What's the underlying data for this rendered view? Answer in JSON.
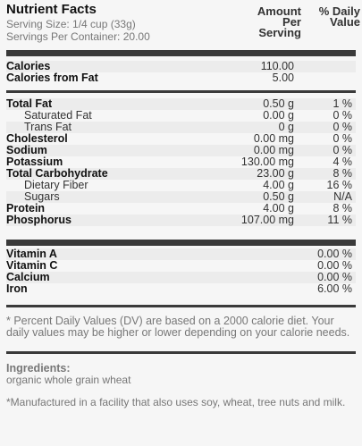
{
  "title": "Nutrient Facts",
  "serving_size": "Serving Size: 1/4 cup (33g)",
  "servings_per_container": "Servings Per Container: 20.00",
  "headers": {
    "amount_line1": "Amount",
    "amount_line2": "Per",
    "amount_line3": "Serving",
    "dv_line1": "% Daily",
    "dv_line2": "Value"
  },
  "calories": [
    {
      "name": "Calories",
      "amount": "110.00"
    },
    {
      "name": "Calories from Fat",
      "amount": "5.00"
    }
  ],
  "nutrients": [
    {
      "name": "Total Fat",
      "amount": "0.50 g",
      "dv": "1 %",
      "level": "main"
    },
    {
      "name": "Saturated Fat",
      "amount": "0.00 g",
      "dv": "0 %",
      "level": "sub"
    },
    {
      "name": "Trans Fat",
      "amount": "0 g",
      "dv": "0 %",
      "level": "sub"
    },
    {
      "name": "Cholesterol",
      "amount": "0.00 mg",
      "dv": "0 %",
      "level": "main"
    },
    {
      "name": "Sodium",
      "amount": "0.00 mg",
      "dv": "0 %",
      "level": "main"
    },
    {
      "name": "Potassium",
      "amount": "130.00 mg",
      "dv": "4 %",
      "level": "main"
    },
    {
      "name": "Total Carbohydrate",
      "amount": "23.00 g",
      "dv": "8 %",
      "level": "main"
    },
    {
      "name": "Dietary Fiber",
      "amount": "4.00 g",
      "dv": "16 %",
      "level": "sub"
    },
    {
      "name": "Sugars",
      "amount": "0.50 g",
      "dv": "N/A",
      "level": "sub"
    },
    {
      "name": "Protein",
      "amount": "4.00 g",
      "dv": "8 %",
      "level": "main"
    },
    {
      "name": "Phosphorus",
      "amount": "107.00 mg",
      "dv": "11 %",
      "level": "main"
    }
  ],
  "vitamins": [
    {
      "name": "Vitamin A",
      "dv": "0.00 %"
    },
    {
      "name": "Vitamin C",
      "dv": "0.00 %"
    },
    {
      "name": "Calcium",
      "dv": "0.00 %"
    },
    {
      "name": "Iron",
      "dv": "6.00 %"
    }
  ],
  "footnote": "* Percent Daily Values (DV) are based on a 2000 calorie diet. Your daily values may be higher or lower depending on your calorie needs.",
  "ingredients_label": "Ingredients:",
  "ingredients_text": "organic whole grain wheat",
  "manufacturing_note": "*Manufactured in a facility that also uses soy, wheat, tree nuts and milk."
}
